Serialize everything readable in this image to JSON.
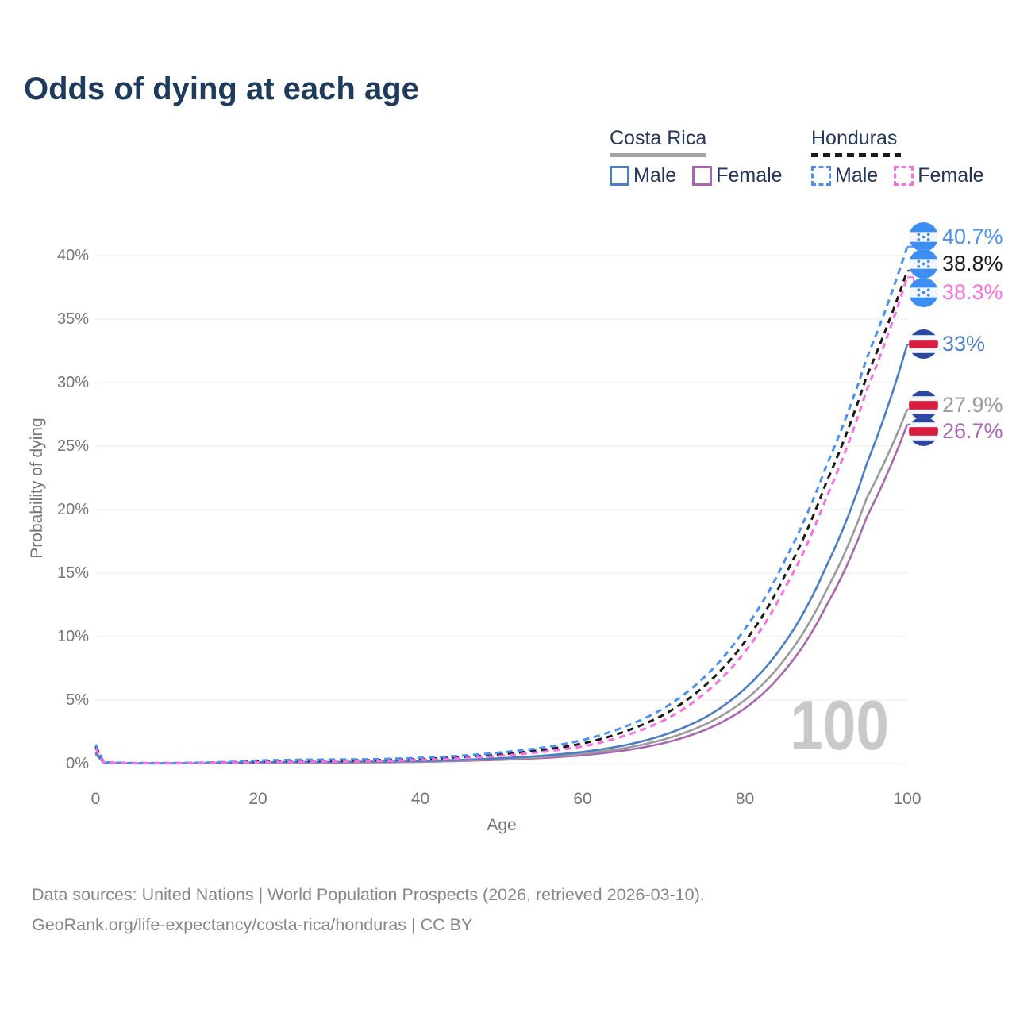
{
  "title": "Odds of dying at each age",
  "watermark": "100",
  "legend": {
    "groups": [
      {
        "country": "Costa Rica",
        "style": "solid",
        "items": [
          {
            "label": "Male"
          },
          {
            "label": "Female"
          }
        ]
      },
      {
        "country": "Honduras",
        "style": "dashed",
        "items": [
          {
            "label": "Male"
          },
          {
            "label": "Female"
          }
        ]
      }
    ]
  },
  "footer": {
    "line1": "Data sources: United Nations | World Population Prospects (2026, retrieved 2026-03-10).",
    "line2": "GeoRank.org/life-expectancy/costa-rica/honduras | CC BY"
  },
  "chart_data": {
    "type": "line",
    "title": "Odds of dying at each age",
    "xlabel": "Age",
    "ylabel": "Probability of dying",
    "xlim": [
      0,
      100
    ],
    "ylim": [
      0,
      41.5
    ],
    "x_ticks": [
      0,
      20,
      40,
      60,
      80,
      100
    ],
    "y_ticks": [
      0,
      5,
      10,
      15,
      20,
      25,
      30,
      35,
      40
    ],
    "y_tick_suffix": "%",
    "grid": "horizontal",
    "legend_position": "top-right",
    "ages": [
      0,
      1,
      5,
      10,
      15,
      20,
      25,
      30,
      35,
      40,
      45,
      50,
      55,
      60,
      65,
      70,
      75,
      80,
      85,
      90,
      95,
      100
    ],
    "series": [
      {
        "name": "Honduras Male",
        "country": "Honduras",
        "sex": "Male",
        "color": "#4a90f2",
        "dash": true,
        "flag": "hn",
        "end_label": "40.7%",
        "values": [
          1.5,
          0.1,
          0.04,
          0.04,
          0.1,
          0.25,
          0.3,
          0.32,
          0.35,
          0.45,
          0.62,
          0.88,
          1.25,
          1.85,
          2.85,
          4.35,
          6.8,
          10.6,
          16.1,
          23.4,
          31.9,
          40.7
        ]
      },
      {
        "name": "Honduras",
        "country": "Honduras",
        "sex": "Both",
        "color": "#1a1a1a",
        "dash": true,
        "flag": "hn",
        "end_label": "38.8%",
        "values": [
          1.35,
          0.09,
          0.035,
          0.035,
          0.08,
          0.17,
          0.21,
          0.23,
          0.27,
          0.36,
          0.51,
          0.74,
          1.07,
          1.58,
          2.48,
          3.85,
          6.1,
          9.6,
          14.9,
          22.1,
          30.5,
          38.8
        ]
      },
      {
        "name": "Honduras Female",
        "country": "Honduras",
        "sex": "Female",
        "color": "#f96ee0",
        "dash": true,
        "flag": "hn",
        "end_label": "38.3%",
        "values": [
          1.2,
          0.08,
          0.03,
          0.03,
          0.06,
          0.1,
          0.13,
          0.16,
          0.2,
          0.28,
          0.41,
          0.62,
          0.92,
          1.35,
          2.15,
          3.4,
          5.5,
          8.8,
          13.9,
          20.9,
          29.4,
          38.3
        ]
      },
      {
        "name": "Costa Rica Male",
        "country": "Costa Rica",
        "sex": "Male",
        "color": "#4b7ec2",
        "dash": false,
        "flag": "cr",
        "end_label": "33%",
        "values": [
          0.9,
          0.06,
          0.02,
          0.02,
          0.05,
          0.1,
          0.12,
          0.13,
          0.16,
          0.21,
          0.3,
          0.42,
          0.62,
          0.92,
          1.42,
          2.25,
          3.6,
          5.9,
          9.6,
          15.5,
          23.6,
          33.0
        ]
      },
      {
        "name": "Costa Rica",
        "country": "Costa Rica",
        "sex": "Both",
        "color": "#9b9b9b",
        "dash": false,
        "flag": "cr",
        "end_label": "27.9%",
        "values": [
          0.82,
          0.055,
          0.018,
          0.018,
          0.04,
          0.08,
          0.09,
          0.1,
          0.13,
          0.17,
          0.25,
          0.36,
          0.52,
          0.78,
          1.2,
          1.9,
          3.05,
          5.0,
          8.3,
          13.6,
          20.9,
          27.9
        ]
      },
      {
        "name": "Costa Rica Female",
        "country": "Costa Rica",
        "sex": "Female",
        "color": "#ab66b2",
        "dash": false,
        "flag": "cr",
        "end_label": "26.7%",
        "values": [
          0.75,
          0.05,
          0.015,
          0.015,
          0.03,
          0.05,
          0.07,
          0.08,
          0.1,
          0.14,
          0.21,
          0.3,
          0.44,
          0.66,
          1.02,
          1.62,
          2.62,
          4.35,
          7.4,
          12.4,
          19.4,
          26.7
        ]
      }
    ]
  }
}
